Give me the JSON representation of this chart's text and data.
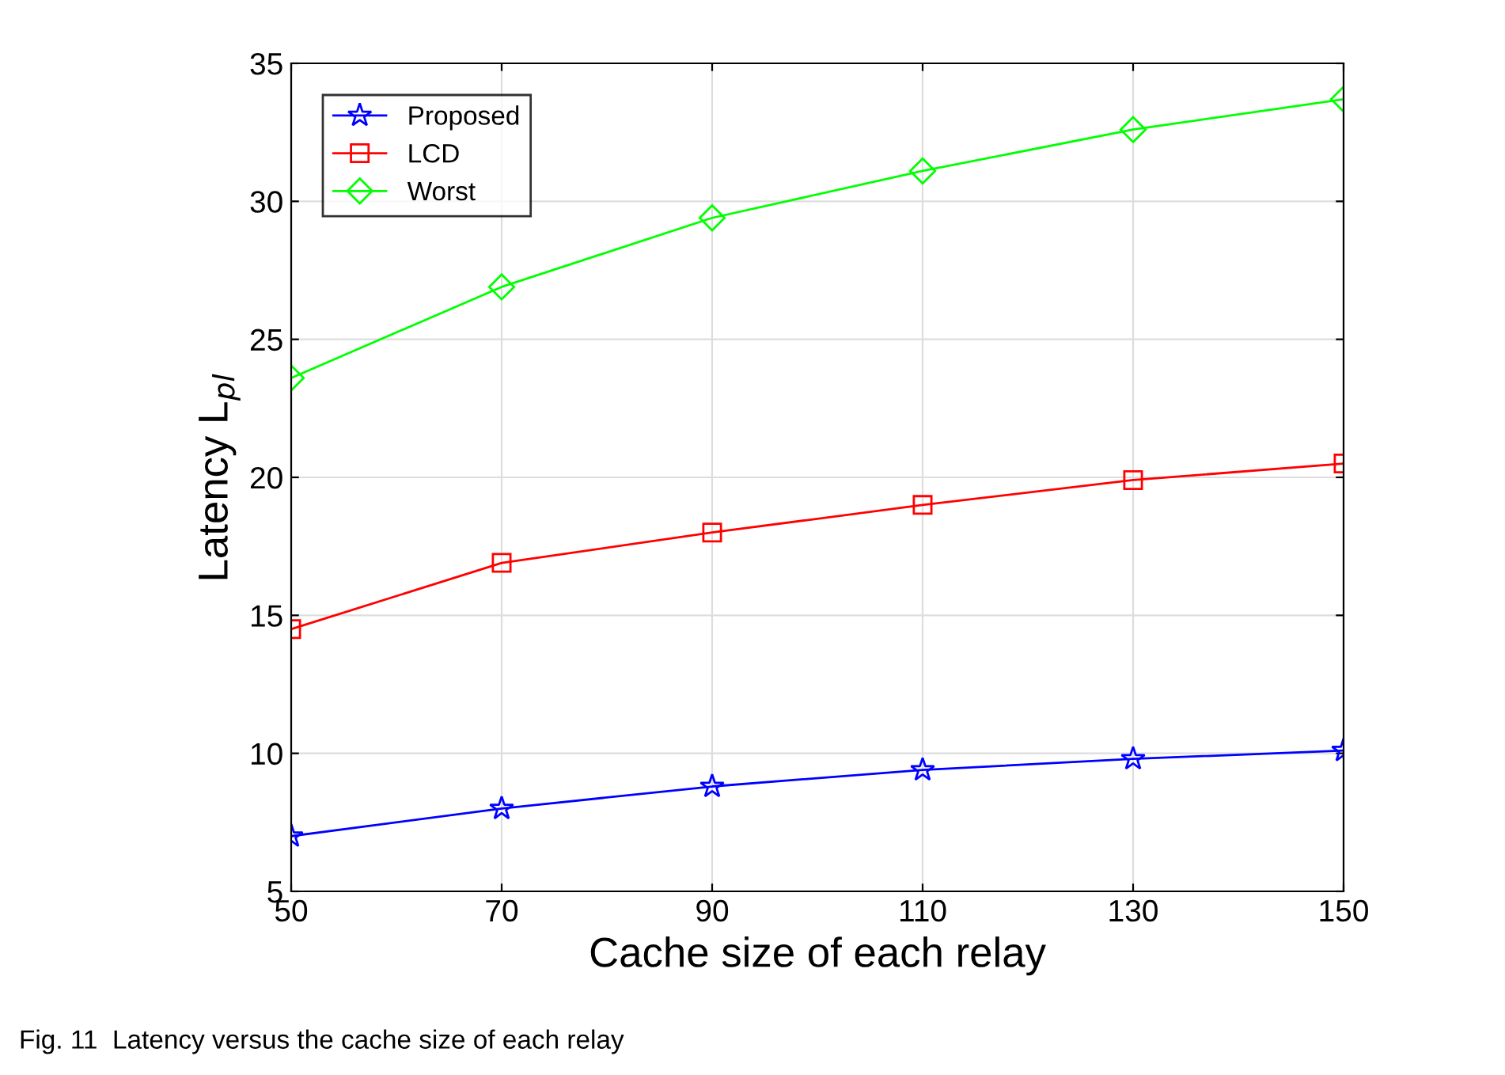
{
  "chart_data": {
    "type": "line",
    "xlabel": "Cache size of each relay",
    "ylabel": "Latency L$_{pl}$",
    "x": [
      50,
      70,
      90,
      110,
      130,
      150
    ],
    "series": [
      {
        "name": "Proposed",
        "color": "#0000ff",
        "marker": "star",
        "values": [
          7.0,
          8.0,
          8.8,
          9.4,
          9.8,
          10.1
        ]
      },
      {
        "name": "LCD",
        "color": "#ff0000",
        "marker": "square",
        "values": [
          14.5,
          16.9,
          18.0,
          19.0,
          19.9,
          20.5
        ]
      },
      {
        "name": "Worst",
        "color": "#00ff00",
        "marker": "diamond",
        "values": [
          23.6,
          26.9,
          29.4,
          31.1,
          32.6,
          33.7
        ]
      }
    ],
    "xlim": [
      50,
      150
    ],
    "xticks": [
      50,
      70,
      90,
      110,
      130,
      150
    ],
    "ylim": [
      5,
      35
    ],
    "yticks": [
      5,
      10,
      15,
      20,
      25,
      30,
      35
    ],
    "grid": true,
    "legend": "top left",
    "line_style": "solid",
    "annotations": [
      "Fig. 11  Latency versus the cache size of each relay"
    ]
  }
}
